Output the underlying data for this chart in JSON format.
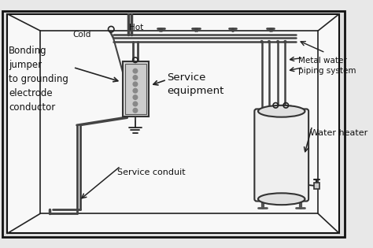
{
  "bg_color": "#e8e8e8",
  "border_color": "#111111",
  "line_color": "#222222",
  "pipe_color": "#444444",
  "room_bg": "#f8f8f8",
  "labels": {
    "cold": "Cold",
    "hot": "Hot",
    "bonding": "Bonding\njumper\nto grounding\nelectrode\nconductor",
    "service_equipment": "Service\nequipment",
    "metal_water": "Metal water\npiping system",
    "service_conduit": "Service conduit",
    "water_heater": "Water heater"
  },
  "figsize": [
    4.74,
    3.15
  ],
  "dpi": 100
}
